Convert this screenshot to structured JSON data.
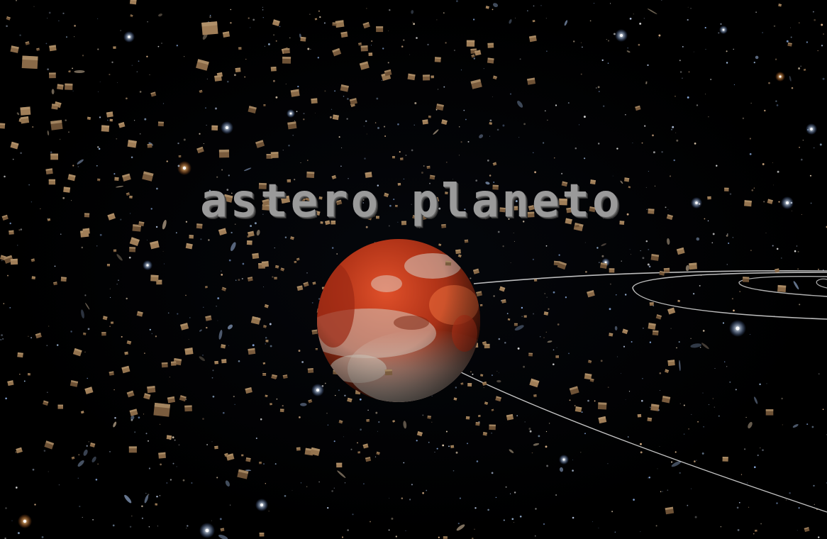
{
  "title": "astero planeto",
  "colors": {
    "background": "#000000",
    "title_text": "#9a9a9a",
    "planet_red": "#c0391e",
    "planet_pale": "#cfc6bd",
    "asteroid": "#8a6a48",
    "orbit_line": "#d8d8d8"
  },
  "icons": {
    "planet": "red-planet-sphere",
    "asteroid": "cube-asteroid",
    "star": "starfield-point"
  }
}
